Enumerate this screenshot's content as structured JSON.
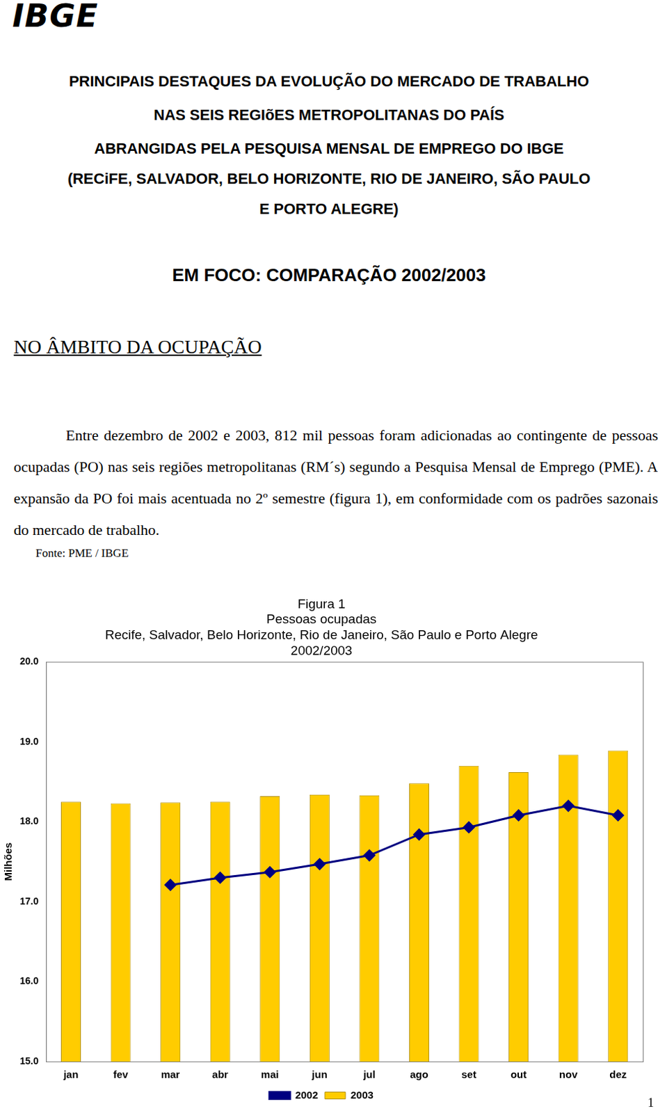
{
  "header": {
    "logo": "IBGE",
    "title_lines": [
      "PRINCIPAIS DESTAQUES DA EVOLUÇÃO DO MERCADO DE TRABALHO",
      "NAS SEIS REGIõES METROPOLITANAS DO PAÍS",
      "ABRANGIDAS PELA PESQUISA MENSAL DE EMPREGO DO IBGE",
      "(RECiFE, SALVADOR, BELO HORIZONTE, RIO DE JANEIRO, SÃO PAULO",
      "E PORTO ALEGRE)"
    ],
    "focus": "EM FOCO: COMPARAÇÃO 2002/2003"
  },
  "section": {
    "heading": "NO ÂMBITO DA OCUPAÇÃO",
    "paragraph": "Entre dezembro de 2002 e 2003, 812 mil pessoas foram adicionadas ao contingente de pessoas ocupadas (PO) nas seis regiões metropolitanas (RM´s) segundo a Pesquisa Mensal de Emprego (PME). A expansão da PO foi mais acentuada no 2º semestre (figura 1), em conformidade com os padrões sazonais do mercado de trabalho.",
    "source": "Fonte: PME / IBGE"
  },
  "chart_data": {
    "type": "bar",
    "title": [
      "Figura 1",
      "Pessoas ocupadas",
      "Recife, Salvador, Belo Horizonte, Rio de Janeiro, São Paulo e Porto Alegre",
      "2002/2003"
    ],
    "y_label": "Milhões",
    "categories": [
      "jan",
      "fev",
      "mar",
      "abr",
      "mai",
      "jun",
      "jul",
      "ago",
      "set",
      "out",
      "nov",
      "dez"
    ],
    "series": [
      {
        "name": "2003",
        "type": "bar",
        "color": "#ffcc00",
        "values": [
          18.25,
          18.23,
          18.24,
          18.25,
          18.32,
          18.34,
          18.33,
          18.48,
          18.7,
          18.62,
          18.84,
          18.89
        ]
      },
      {
        "name": "2002",
        "type": "line",
        "color": "#000080",
        "marker": "diamond",
        "line_style": "solid",
        "values": [
          null,
          null,
          17.21,
          17.3,
          17.37,
          17.47,
          17.58,
          17.84,
          17.93,
          18.08,
          18.2,
          18.08
        ]
      }
    ],
    "ylim": [
      15,
      20
    ],
    "yticks": [
      {
        "value": 15,
        "label": "15.0"
      },
      {
        "value": 16,
        "label": "16.0"
      },
      {
        "value": 17,
        "label": "17.0"
      },
      {
        "value": 18,
        "label": "18.0"
      },
      {
        "value": 19,
        "label": "19.0"
      },
      {
        "value": 20,
        "label": "20.0"
      }
    ],
    "grid": false,
    "legend": "bottom"
  },
  "page_number": "1"
}
